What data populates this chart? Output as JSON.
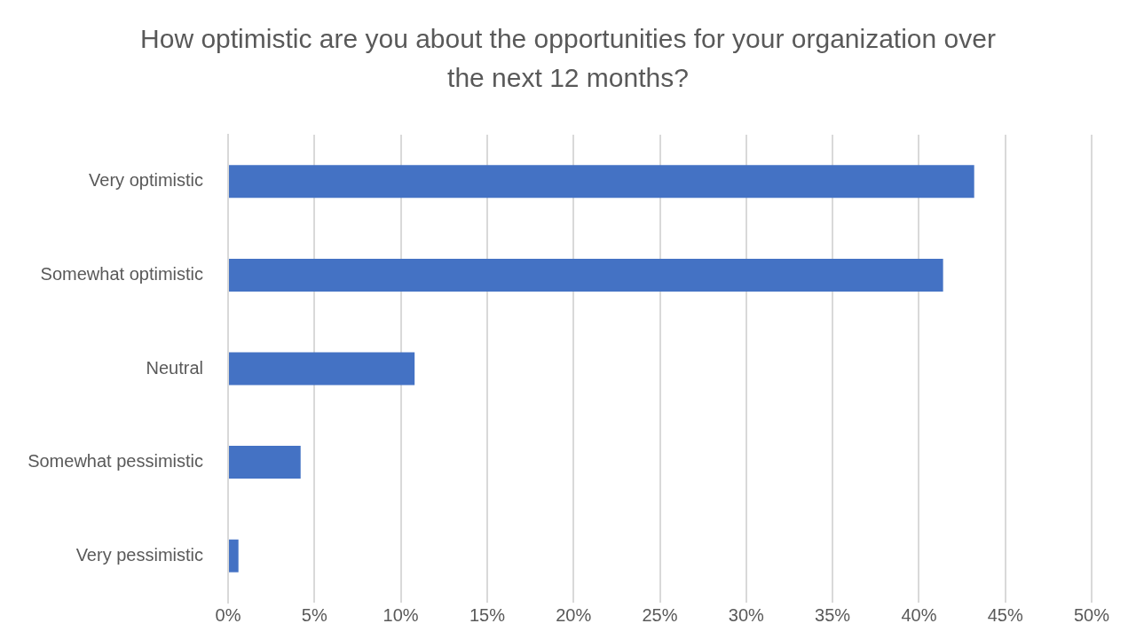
{
  "chart_data": {
    "type": "bar",
    "orientation": "horizontal",
    "title": "How optimistic are you about the opportunities for your organization over the next 12 months?",
    "categories": [
      "Very optimistic",
      "Somewhat optimistic",
      "Neutral",
      "Somewhat pessimistic",
      "Very pessimistic"
    ],
    "values": [
      43.2,
      41.4,
      10.8,
      4.2,
      0.6
    ],
    "color": "#4472c4",
    "xlim": [
      0,
      50
    ],
    "xticks": [
      {
        "value": 0,
        "label": "0%"
      },
      {
        "value": 5,
        "label": "5%"
      },
      {
        "value": 10,
        "label": "10%"
      },
      {
        "value": 15,
        "label": "15%"
      },
      {
        "value": 20,
        "label": "20%"
      },
      {
        "value": 25,
        "label": "25%"
      },
      {
        "value": 30,
        "label": "30%"
      },
      {
        "value": 35,
        "label": "35%"
      },
      {
        "value": 40,
        "label": "40%"
      },
      {
        "value": 45,
        "label": "45%"
      },
      {
        "value": 50,
        "label": "50%"
      }
    ],
    "grid": "x"
  }
}
